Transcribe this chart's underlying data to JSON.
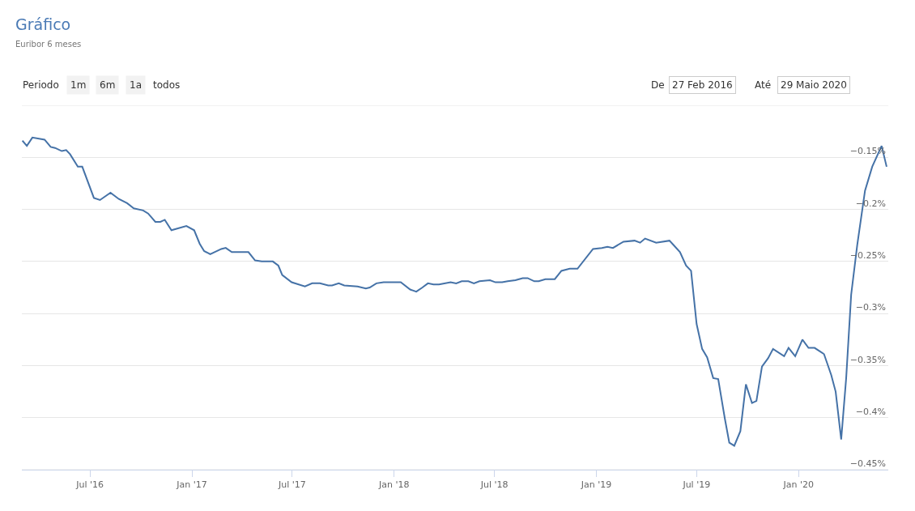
{
  "chart_data": {
    "type": "line",
    "title": "Gráfico",
    "subtitle": "Euribor 6 meses",
    "annotations": [
      "Periodo",
      "1m",
      "6m",
      "1a",
      "todos",
      "De",
      "27 Feb 2016",
      "Até",
      "29 Maio 2020"
    ],
    "x": [
      "2016-03-01",
      "2016-03-09",
      "2016-03-19",
      "2016-04-10",
      "2016-04-21",
      "2016-04-29",
      "2016-05-11",
      "2016-05-19",
      "2016-05-26",
      "2016-06-09",
      "2016-06-17",
      "2016-07-08",
      "2016-07-19",
      "2016-08-07",
      "2016-08-22",
      "2016-09-06",
      "2016-09-18",
      "2016-10-05",
      "2016-10-14",
      "2016-10-27",
      "2016-11-05",
      "2016-11-13",
      "2016-11-25",
      "2016-12-22",
      "2017-01-05",
      "2017-01-15",
      "2017-01-23",
      "2017-02-03",
      "2017-02-23",
      "2017-03-03",
      "2017-03-14",
      "2017-04-13",
      "2017-04-25",
      "2017-05-07",
      "2017-05-27",
      "2017-06-06",
      "2017-06-13",
      "2017-06-30",
      "2017-07-24",
      "2017-08-06",
      "2017-08-20",
      "2017-09-04",
      "2017-09-11",
      "2017-09-23",
      "2017-10-03",
      "2017-10-27",
      "2017-11-11",
      "2017-11-18",
      "2017-11-30",
      "2017-12-13",
      "2018-01-13",
      "2018-01-30",
      "2018-02-10",
      "2018-02-21",
      "2018-03-03",
      "2018-03-13",
      "2018-03-23",
      "2018-04-13",
      "2018-04-23",
      "2018-05-03",
      "2018-05-15",
      "2018-05-25",
      "2018-06-04",
      "2018-06-23",
      "2018-07-03",
      "2018-07-15",
      "2018-07-25",
      "2018-08-08",
      "2018-08-21",
      "2018-08-30",
      "2018-09-11",
      "2018-09-19",
      "2018-10-01",
      "2018-10-18",
      "2018-10-30",
      "2018-11-14",
      "2018-11-28",
      "2018-12-26",
      "2019-01-11",
      "2019-01-21",
      "2019-01-31",
      "2019-02-19",
      "2019-03-11",
      "2019-03-21",
      "2019-03-30",
      "2019-04-19",
      "2019-05-13",
      "2019-05-20",
      "2019-06-01",
      "2019-06-12",
      "2019-06-21",
      "2019-07-01",
      "2019-07-11",
      "2019-07-20",
      "2019-07-31",
      "2019-08-09",
      "2019-08-21",
      "2019-08-29",
      "2019-09-07",
      "2019-09-18",
      "2019-09-28",
      "2019-10-09",
      "2019-10-17",
      "2019-10-27",
      "2019-11-07",
      "2019-11-16",
      "2019-12-06",
      "2019-12-14",
      "2019-12-26",
      "2020-01-08",
      "2020-01-19",
      "2020-01-30",
      "2020-02-16",
      "2020-02-29",
      "2020-03-08",
      "2020-03-18",
      "2020-03-27",
      "2020-04-05",
      "2020-04-16",
      "2020-04-23",
      "2020-04-30",
      "2020-05-13",
      "2020-05-30",
      "2020-06-08"
    ],
    "values": [
      -0.134,
      -0.139,
      -0.131,
      -0.133,
      -0.14,
      -0.141,
      -0.144,
      -0.143,
      -0.147,
      -0.159,
      -0.159,
      -0.189,
      -0.191,
      -0.184,
      -0.19,
      -0.194,
      -0.199,
      -0.201,
      -0.204,
      -0.212,
      -0.212,
      -0.21,
      -0.22,
      -0.216,
      -0.22,
      -0.233,
      -0.24,
      -0.243,
      -0.238,
      -0.237,
      -0.241,
      -0.241,
      -0.249,
      -0.25,
      -0.25,
      -0.254,
      -0.263,
      -0.27,
      -0.274,
      -0.271,
      -0.271,
      -0.273,
      -0.273,
      -0.271,
      -0.273,
      -0.274,
      -0.276,
      -0.275,
      -0.271,
      -0.27,
      -0.27,
      -0.277,
      -0.279,
      -0.275,
      -0.271,
      -0.272,
      -0.272,
      -0.27,
      -0.271,
      -0.269,
      -0.269,
      -0.271,
      -0.269,
      -0.268,
      -0.27,
      -0.27,
      -0.269,
      -0.268,
      -0.266,
      -0.266,
      -0.269,
      -0.269,
      -0.267,
      -0.267,
      -0.259,
      -0.257,
      -0.257,
      -0.238,
      -0.237,
      -0.236,
      -0.237,
      -0.231,
      -0.23,
      -0.232,
      -0.228,
      -0.232,
      -0.23,
      -0.234,
      -0.241,
      -0.254,
      -0.259,
      -0.31,
      -0.334,
      -0.342,
      -0.362,
      -0.363,
      -0.401,
      -0.424,
      -0.427,
      -0.413,
      -0.368,
      -0.386,
      -0.384,
      -0.351,
      -0.343,
      -0.334,
      -0.341,
      -0.333,
      -0.341,
      -0.325,
      -0.333,
      -0.333,
      -0.339,
      -0.359,
      -0.375,
      -0.421,
      -0.362,
      -0.282,
      -0.234,
      -0.208,
      -0.182,
      -0.159,
      -0.139,
      -0.159
    ],
    "color": "#4572a7",
    "xlim": [
      "2016-02-29",
      "2020-06-11"
    ],
    "xticks": [
      {
        "value": "2016-07-01",
        "label": "Jul '16"
      },
      {
        "value": "2017-01-01",
        "label": "Jan '17"
      },
      {
        "value": "2017-07-01",
        "label": "Jul '17"
      },
      {
        "value": "2018-01-01",
        "label": "Jan '18"
      },
      {
        "value": "2018-07-01",
        "label": "Jul '18"
      },
      {
        "value": "2019-01-01",
        "label": "Jan '19"
      },
      {
        "value": "2019-07-01",
        "label": "Jul '19"
      },
      {
        "value": "2020-01-01",
        "label": "Jan '20"
      }
    ],
    "ylim": [
      -0.45,
      -0.1
    ],
    "yticks": [
      {
        "value": -0.45,
        "label": "−0.45%"
      },
      {
        "value": -0.4,
        "label": "−0.4%"
      },
      {
        "value": -0.35,
        "label": "−0.35%"
      },
      {
        "value": -0.3,
        "label": "−0.3%"
      },
      {
        "value": -0.25,
        "label": "−0.25%"
      },
      {
        "value": -0.2,
        "label": "−0.2%"
      },
      {
        "value": -0.15,
        "label": "−0.15%"
      },
      {
        "value": -0.1,
        "label": null
      }
    ],
    "grid": "y"
  }
}
